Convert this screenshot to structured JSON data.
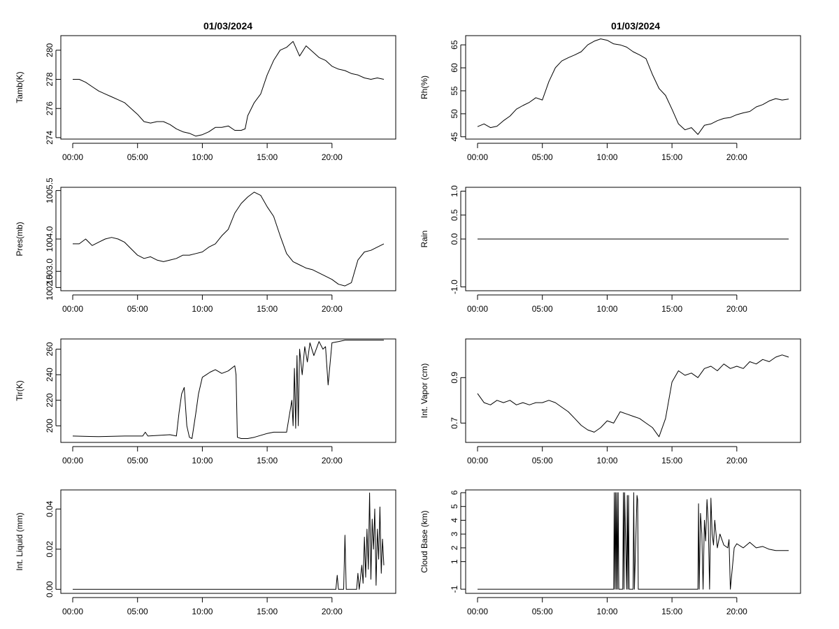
{
  "titles": [
    "01/03/2024",
    "01/03/2024"
  ],
  "chart_data": [
    {
      "type": "line",
      "ylabel": "Tamb(K)",
      "xlim": [
        0,
        24
      ],
      "xticks": [
        0,
        5,
        10,
        15,
        20
      ],
      "xtick_labels": [
        "00:00",
        "05:00",
        "10:00",
        "15:00",
        "20:00"
      ],
      "ylim": [
        273.9,
        281.0
      ],
      "yticks": [
        274,
        276,
        278,
        280
      ],
      "ytick_labels": [
        "274",
        "276",
        "278",
        "280"
      ],
      "x": [
        0,
        0.5,
        1,
        1.5,
        2,
        2.5,
        3,
        3.5,
        4,
        4.5,
        5,
        5.5,
        6,
        6.5,
        7,
        7.5,
        8,
        8.5,
        9,
        9.5,
        10,
        10.5,
        11,
        11.5,
        12,
        12.5,
        13,
        13.3,
        13.5,
        14,
        14.5,
        15,
        15.5,
        16,
        16.5,
        17,
        17.5,
        18,
        18.5,
        19,
        19.5,
        20,
        20.5,
        21,
        21.5,
        22,
        22.5,
        23,
        23.5,
        24
      ],
      "y": [
        278.0,
        278.0,
        277.8,
        277.5,
        277.2,
        277.0,
        276.8,
        276.6,
        276.4,
        276.0,
        275.6,
        275.1,
        275.0,
        275.1,
        275.1,
        274.9,
        274.6,
        274.4,
        274.3,
        274.1,
        274.2,
        274.4,
        274.7,
        274.7,
        274.8,
        274.5,
        274.5,
        274.6,
        275.5,
        276.4,
        277.0,
        278.3,
        279.3,
        280.0,
        280.2,
        280.6,
        279.6,
        280.3,
        279.9,
        279.5,
        279.3,
        278.9,
        278.7,
        278.6,
        278.4,
        278.3,
        278.1,
        278.0,
        278.1,
        278.0
      ]
    },
    {
      "type": "line",
      "ylabel": "Rh(%)",
      "xlim": [
        0,
        24
      ],
      "xticks": [
        0,
        5,
        10,
        15,
        20
      ],
      "xtick_labels": [
        "00:00",
        "05:00",
        "10:00",
        "15:00",
        "20:00"
      ],
      "ylim": [
        44.5,
        67.0
      ],
      "yticks": [
        45,
        50,
        55,
        60,
        65
      ],
      "ytick_labels": [
        "45",
        "50",
        "55",
        "60",
        "65"
      ],
      "x": [
        0,
        0.5,
        1,
        1.5,
        2,
        2.5,
        3,
        3.5,
        4,
        4.5,
        5,
        5.5,
        6,
        6.5,
        7,
        7.5,
        8,
        8.5,
        9,
        9.5,
        10,
        10.5,
        11,
        11.5,
        12,
        12.5,
        13,
        13.5,
        14,
        14.5,
        15,
        15.5,
        16,
        16.5,
        17,
        17.5,
        18,
        18.5,
        19,
        19.5,
        20,
        20.5,
        21,
        21.5,
        22,
        22.5,
        23,
        23.5,
        24
      ],
      "y": [
        47.2,
        47.8,
        47.0,
        47.3,
        48.5,
        49.5,
        51.0,
        51.8,
        52.5,
        53.5,
        53.0,
        57.0,
        60.0,
        61.5,
        62.2,
        62.8,
        63.5,
        65.0,
        65.8,
        66.3,
        66.0,
        65.2,
        65.0,
        64.5,
        63.5,
        62.8,
        62.0,
        58.5,
        55.5,
        54.0,
        51.0,
        47.8,
        46.5,
        47.0,
        45.5,
        47.5,
        47.8,
        48.5,
        49.0,
        49.2,
        49.8,
        50.2,
        50.5,
        51.5,
        52.0,
        52.8,
        53.3,
        53.0,
        53.2
      ]
    },
    {
      "type": "line",
      "ylabel": "Pres(mb)",
      "xlim": [
        0,
        24
      ],
      "xticks": [
        0,
        5,
        10,
        15,
        20
      ],
      "xtick_labels": [
        "00:00",
        "05:00",
        "10:00",
        "15:00",
        "20:00"
      ],
      "ylim": [
        1002.4,
        1005.6
      ],
      "yticks": [
        1002.5,
        1003.0,
        1004.0,
        1005.5
      ],
      "ytick_labels": [
        "1002.5",
        "1003.0",
        "1004.0",
        "1005.5"
      ],
      "x": [
        0,
        0.5,
        1,
        1.5,
        2,
        2.5,
        3,
        3.5,
        4,
        4.5,
        5,
        5.5,
        6,
        6.5,
        7,
        7.5,
        8,
        8.5,
        9,
        9.5,
        10,
        10.5,
        11,
        11.5,
        12,
        12.5,
        13,
        13.5,
        14,
        14.5,
        15,
        15.5,
        16,
        16.5,
        17,
        17.5,
        18,
        18.5,
        19,
        19.5,
        20,
        20.5,
        21,
        21.5,
        22,
        22.5,
        23,
        23.5,
        24
      ],
      "y": [
        1003.85,
        1003.85,
        1004.0,
        1003.8,
        1003.9,
        1004.0,
        1004.05,
        1004.0,
        1003.9,
        1003.7,
        1003.5,
        1003.4,
        1003.45,
        1003.35,
        1003.3,
        1003.35,
        1003.4,
        1003.5,
        1003.5,
        1003.55,
        1003.6,
        1003.75,
        1003.85,
        1004.1,
        1004.3,
        1004.8,
        1005.1,
        1005.3,
        1005.45,
        1005.35,
        1005.0,
        1004.7,
        1004.1,
        1003.55,
        1003.3,
        1003.2,
        1003.1,
        1003.05,
        1002.95,
        1002.85,
        1002.75,
        1002.6,
        1002.55,
        1002.65,
        1003.35,
        1003.6,
        1003.65,
        1003.75,
        1003.85
      ]
    },
    {
      "type": "line",
      "ylabel": "Rain",
      "xlim": [
        0,
        24
      ],
      "xticks": [
        0,
        5,
        10,
        15,
        20
      ],
      "xtick_labels": [
        "00:00",
        "05:00",
        "10:00",
        "15:00",
        "20:00"
      ],
      "ylim": [
        -1.08,
        1.08
      ],
      "yticks": [
        -1.0,
        0.0,
        0.5,
        1.0
      ],
      "ytick_labels": [
        "-1.0",
        "0.0",
        "0.5",
        "1.0"
      ],
      "x": [
        0,
        24
      ],
      "y": [
        0,
        0
      ]
    },
    {
      "type": "line",
      "ylabel": "Tir(K)",
      "xlim": [
        0,
        24
      ],
      "xticks": [
        0,
        5,
        10,
        15,
        20
      ],
      "xtick_labels": [
        "00:00",
        "05:00",
        "10:00",
        "15:00",
        "20:00"
      ],
      "ylim": [
        187,
        268
      ],
      "yticks": [
        200,
        220,
        240,
        260
      ],
      "ytick_labels": [
        "200",
        "220",
        "240",
        "260"
      ],
      "x": [
        0,
        2,
        4,
        5.4,
        5.6,
        5.8,
        7.5,
        8,
        8.2,
        8.4,
        8.6,
        8.8,
        9,
        9.2,
        9.5,
        9.7,
        10,
        10.3,
        10.6,
        11,
        11.5,
        12,
        12.5,
        12.6,
        12.7,
        13,
        13.5,
        14,
        15,
        15.5,
        16.5,
        16.9,
        17,
        17.1,
        17.2,
        17.3,
        17.4,
        17.5,
        17.7,
        17.9,
        18.1,
        18.3,
        18.6,
        19,
        19.3,
        19.5,
        19.7,
        20,
        20.5,
        21,
        22,
        23,
        24
      ],
      "y": [
        192,
        191.5,
        192,
        192,
        195,
        192,
        193,
        192,
        210,
        225,
        230,
        200,
        191,
        190,
        210,
        225,
        238,
        240,
        242,
        244,
        241,
        243,
        247,
        240,
        191,
        190,
        190,
        191,
        194,
        195,
        195,
        220,
        200,
        245,
        198,
        255,
        200,
        260,
        240,
        262,
        250,
        265,
        255,
        266,
        260,
        262,
        232,
        265,
        266,
        267,
        267,
        267,
        267
      ]
    },
    {
      "type": "line",
      "ylabel": "Int. Vapor (cm)",
      "xlim": [
        0,
        24
      ],
      "xticks": [
        0,
        5,
        10,
        15,
        20
      ],
      "xtick_labels": [
        "00:00",
        "05:00",
        "10:00",
        "15:00",
        "20:00"
      ],
      "ylim": [
        0.615,
        1.07
      ],
      "yticks": [
        0.7,
        0.9
      ],
      "ytick_labels": [
        "0.7",
        "0.9"
      ],
      "x": [
        0,
        0.5,
        1,
        1.5,
        2,
        2.5,
        3,
        3.5,
        4,
        4.5,
        5,
        5.5,
        6,
        6.5,
        7,
        7.5,
        8,
        8.5,
        9,
        9.5,
        10,
        10.5,
        11,
        11.5,
        12,
        12.5,
        13,
        13.5,
        14,
        14.5,
        15,
        15.5,
        16,
        16.5,
        17,
        17.5,
        18,
        18.5,
        19,
        19.5,
        20,
        20.5,
        21,
        21.5,
        22,
        22.5,
        23,
        23.5,
        24
      ],
      "y": [
        0.83,
        0.79,
        0.78,
        0.8,
        0.79,
        0.8,
        0.78,
        0.79,
        0.78,
        0.79,
        0.79,
        0.8,
        0.79,
        0.77,
        0.75,
        0.72,
        0.69,
        0.67,
        0.66,
        0.68,
        0.71,
        0.7,
        0.75,
        0.74,
        0.73,
        0.72,
        0.7,
        0.68,
        0.64,
        0.72,
        0.88,
        0.93,
        0.91,
        0.92,
        0.9,
        0.94,
        0.95,
        0.93,
        0.96,
        0.94,
        0.95,
        0.94,
        0.97,
        0.96,
        0.98,
        0.97,
        0.99,
        1.0,
        0.99
      ]
    },
    {
      "type": "line",
      "ylabel": "Int. Liquid (mm)",
      "xlim": [
        0,
        24
      ],
      "xticks": [
        0,
        5,
        10,
        15,
        20
      ],
      "xtick_labels": [
        "00:00",
        "05:00",
        "10:00",
        "15:00",
        "20:00"
      ],
      "ylim": [
        -0.002,
        0.0495
      ],
      "yticks": [
        0.0,
        0.02,
        0.04
      ],
      "ytick_labels": [
        "0.00",
        "0.02",
        "0.04"
      ],
      "x": [
        0,
        20.3,
        20.4,
        20.5,
        20.9,
        21.0,
        21.1,
        21.9,
        22.0,
        22.1,
        22.3,
        22.4,
        22.5,
        22.6,
        22.7,
        22.8,
        22.9,
        23.0,
        23.1,
        23.2,
        23.3,
        23.4,
        23.5,
        23.6,
        23.7,
        23.8,
        23.9,
        24
      ],
      "y": [
        0,
        0,
        0.007,
        0,
        0,
        0.027,
        0,
        0,
        0.008,
        0,
        0.012,
        0.003,
        0.026,
        0.006,
        0.03,
        0.01,
        0.048,
        0.005,
        0.035,
        0.02,
        0.04,
        0.002,
        0.03,
        0.015,
        0.041,
        0.008,
        0.025,
        0.012
      ]
    },
    {
      "type": "line",
      "ylabel": "Cloud Base (km)",
      "xlim": [
        0,
        24
      ],
      "xticks": [
        0,
        5,
        10,
        15,
        20
      ],
      "xtick_labels": [
        "00:00",
        "05:00",
        "10:00",
        "15:00",
        "20:00"
      ],
      "ylim": [
        -1.3,
        6.2
      ],
      "yticks": [
        -1,
        1,
        2,
        3,
        4,
        5,
        6
      ],
      "ytick_labels": [
        "-1",
        "1",
        "2",
        "3",
        "4",
        "5",
        "6"
      ],
      "x": [
        0,
        10.5,
        10.55,
        10.6,
        10.65,
        10.7,
        10.75,
        10.8,
        10.85,
        10.9,
        11.2,
        11.25,
        11.3,
        11.35,
        11.5,
        11.55,
        11.6,
        11.65,
        11.7,
        12.0,
        12.05,
        12.1,
        12.3,
        12.35,
        12.4,
        12.7,
        12.75,
        17.0,
        17.05,
        17.1,
        17.2,
        17.3,
        17.4,
        17.5,
        17.6,
        17.7,
        17.8,
        17.9,
        18.0,
        18.1,
        18.2,
        18.3,
        18.5,
        18.7,
        19.0,
        19.3,
        19.4,
        19.5,
        19.8,
        20.0,
        20.5,
        21.0,
        21.5,
        22.0,
        22.5,
        23.0,
        23.5,
        24
      ],
      "y": [
        -1,
        -1,
        6,
        -1,
        6,
        -1,
        6,
        -1,
        6,
        -1,
        -1,
        6,
        -1,
        6,
        -1,
        5.8,
        -1,
        5.8,
        -1,
        -1,
        6,
        -1,
        5.8,
        5.5,
        -1,
        -1,
        -1,
        -1,
        5.2,
        -1,
        4.5,
        3,
        -1,
        4.0,
        2.5,
        5.5,
        3.8,
        -1,
        5.6,
        3.0,
        2.2,
        4.0,
        2.0,
        3.0,
        2.2,
        2.0,
        2.6,
        -1,
        2.0,
        2.3,
        2.0,
        2.4,
        2.0,
        2.1,
        1.9,
        1.8,
        1.8,
        1.8
      ]
    }
  ]
}
